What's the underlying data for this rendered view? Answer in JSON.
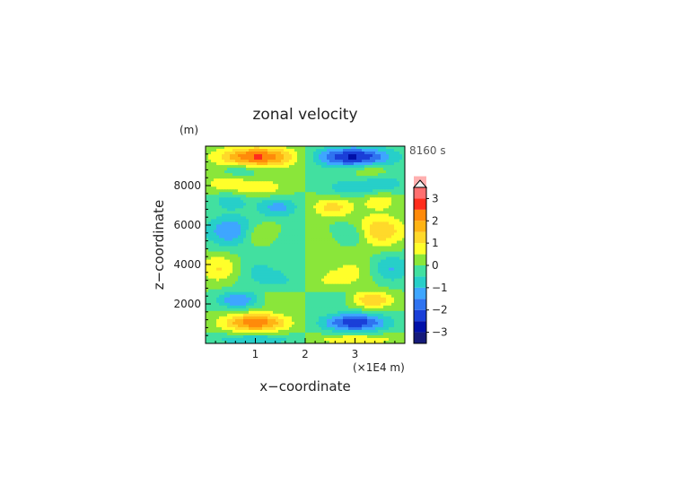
{
  "chart_data": {
    "type": "heatmap",
    "title": "zonal velocity",
    "xlabel": "x−coordinate",
    "ylabel": "z−coordinate",
    "x_unit_label": "(×1E4 m)",
    "y_unit_label": "(m)",
    "time_label": "8160 s",
    "x_ticks": [
      {
        "value": 1,
        "label": "1"
      },
      {
        "value": 2,
        "label": "2"
      },
      {
        "value": 3,
        "label": "3"
      }
    ],
    "y_ticks": [
      {
        "value": 2000,
        "label": "2000"
      },
      {
        "value": 4000,
        "label": "4000"
      },
      {
        "value": 6000,
        "label": "6000"
      },
      {
        "value": 8000,
        "label": "8000"
      }
    ],
    "xlim": [
      0,
      4
    ],
    "ylim": [
      0,
      10000
    ],
    "colorbar": {
      "ticks": [
        {
          "value": 3,
          "label": "3"
        },
        {
          "value": 2,
          "label": "2"
        },
        {
          "value": 1,
          "label": "1"
        },
        {
          "value": 0,
          "label": "0"
        },
        {
          "value": -1,
          "label": "−1"
        },
        {
          "value": -2,
          "label": "−2"
        },
        {
          "value": -3,
          "label": "−3"
        }
      ],
      "range": [
        -3.5,
        3.5
      ],
      "step": 0.5,
      "colors": [
        "#151a7a",
        "#0010a8",
        "#1a3fd8",
        "#2f73f0",
        "#3ea6ff",
        "#27cfc9",
        "#42e0a0",
        "#8ae63a",
        "#ffff2a",
        "#ffd92a",
        "#ffb414",
        "#ff8a0a",
        "#ff2d1c",
        "#ff6f6f",
        "#ffb0b0"
      ]
    },
    "features": [
      {
        "x": 1.05,
        "z": 9450,
        "sx": 0.55,
        "sz": 350,
        "u": 2.6
      },
      {
        "x": 0.7,
        "z": 8800,
        "sx": 0.25,
        "sz": 250,
        "u": -0.6
      },
      {
        "x": 0.4,
        "z": 8100,
        "sx": 0.3,
        "sz": 300,
        "u": 0.8
      },
      {
        "x": 1.1,
        "z": 7900,
        "sx": 0.35,
        "sz": 300,
        "u": 0.9
      },
      {
        "x": 0.5,
        "z": 7200,
        "sx": 0.25,
        "sz": 300,
        "u": -0.8
      },
      {
        "x": 1.45,
        "z": 6900,
        "sx": 0.3,
        "sz": 350,
        "u": -1.2
      },
      {
        "x": 0.5,
        "z": 5700,
        "sx": 0.35,
        "sz": 550,
        "u": -1.5
      },
      {
        "x": 1.15,
        "z": 5500,
        "sx": 0.3,
        "sz": 400,
        "u": 0.9
      },
      {
        "x": 1.55,
        "z": 5300,
        "sx": 0.25,
        "sz": 400,
        "u": -0.6
      },
      {
        "x": 0.3,
        "z": 3800,
        "sx": 0.3,
        "sz": 500,
        "u": 1.1
      },
      {
        "x": 1.0,
        "z": 3700,
        "sx": 0.35,
        "sz": 600,
        "u": -0.6
      },
      {
        "x": 1.5,
        "z": 3200,
        "sx": 0.3,
        "sz": 400,
        "u": -0.5
      },
      {
        "x": 0.65,
        "z": 2200,
        "sx": 0.3,
        "sz": 300,
        "u": -1.5
      },
      {
        "x": 1.4,
        "z": 2300,
        "sx": 0.25,
        "sz": 300,
        "u": 0.6
      },
      {
        "x": 1.0,
        "z": 1050,
        "sx": 0.45,
        "sz": 330,
        "u": 2.4
      },
      {
        "x": 1.0,
        "z": 200,
        "sx": 0.6,
        "sz": 200,
        "u": -1.0
      }
    ]
  }
}
